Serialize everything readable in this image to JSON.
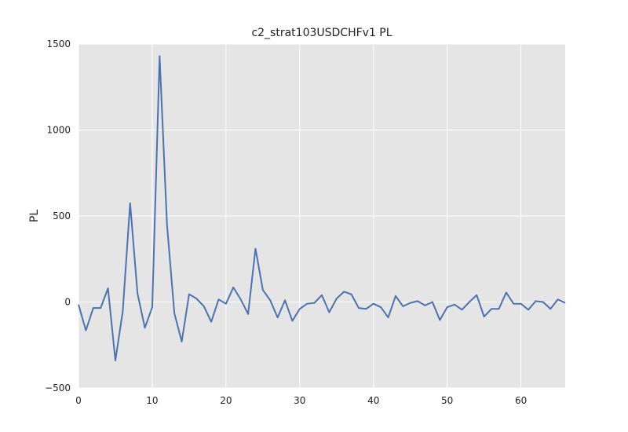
{
  "chart_data": {
    "type": "line",
    "title": "c2_strat103USDCHFv1 PL",
    "xlabel": "",
    "ylabel": "PL",
    "xlim": [
      0,
      66
    ],
    "ylim": [
      -500,
      1500
    ],
    "xticks": [
      0,
      10,
      20,
      30,
      40,
      50,
      60
    ],
    "yticks": [
      -500,
      0,
      500,
      1000,
      1500
    ],
    "xtick_labels": [
      "0",
      "10",
      "20",
      "30",
      "40",
      "50",
      "60"
    ],
    "ytick_labels": [
      "−500",
      "0",
      "500",
      "1000",
      "1500"
    ],
    "grid": true,
    "background_color": "#e5e5e5",
    "grid_color": "#ffffff",
    "series": [
      {
        "color": "#4c72b0",
        "x": [
          0,
          1,
          2,
          3,
          4,
          5,
          6,
          7,
          8,
          9,
          10,
          11,
          12,
          13,
          14,
          15,
          16,
          17,
          18,
          19,
          20,
          21,
          22,
          23,
          24,
          25,
          26,
          27,
          28,
          29,
          30,
          31,
          32,
          33,
          34,
          35,
          36,
          37,
          38,
          39,
          40,
          41,
          42,
          43,
          44,
          45,
          46,
          47,
          48,
          49,
          50,
          51,
          52,
          53,
          54,
          55,
          56,
          57,
          58,
          59,
          60,
          61,
          62,
          63,
          64,
          65,
          66
        ],
        "values": [
          -15,
          -165,
          -35,
          -35,
          80,
          -340,
          -55,
          575,
          50,
          -150,
          -30,
          1430,
          450,
          -65,
          -230,
          45,
          20,
          -25,
          -115,
          15,
          -10,
          85,
          15,
          -70,
          310,
          70,
          10,
          -90,
          10,
          -110,
          -40,
          -10,
          -5,
          40,
          -60,
          20,
          60,
          45,
          -35,
          -40,
          -10,
          -30,
          -90,
          35,
          -25,
          -5,
          5,
          -20,
          0,
          -105,
          -30,
          -15,
          -45,
          0,
          40,
          -85,
          -40,
          -40,
          55,
          -10,
          -10,
          -45,
          5,
          0,
          -40,
          15,
          -5
        ]
      }
    ]
  }
}
